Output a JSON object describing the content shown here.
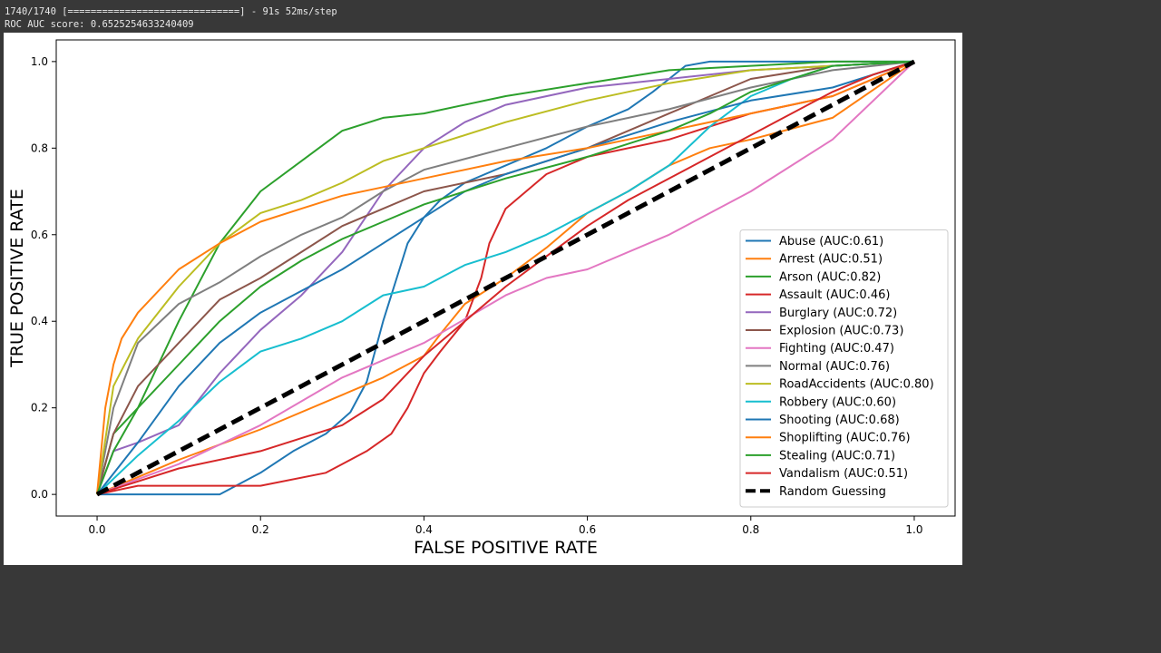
{
  "console": {
    "progress_line": "1740/1740 [==============================] - 91s 52ms/step",
    "score_line": "ROC AUC score: 0.6525254633240409"
  },
  "chart_data": {
    "type": "line",
    "title": "",
    "xlabel": "FALSE POSITIVE RATE",
    "ylabel": "TRUE POSITIVE RATE",
    "xlim": [
      -0.05,
      1.05
    ],
    "ylim": [
      -0.05,
      1.05
    ],
    "xticks": [
      "0.0",
      "0.2",
      "0.4",
      "0.6",
      "0.8",
      "1.0"
    ],
    "yticks": [
      "0.0",
      "0.2",
      "0.4",
      "0.6",
      "0.8",
      "1.0"
    ],
    "grid": false,
    "legend_position": "lower-right",
    "series": [
      {
        "name": "Abuse (AUC:0.61)",
        "color": "#1f77b4",
        "style": "solid",
        "x": [
          0,
          0.15,
          0.2,
          0.24,
          0.28,
          0.31,
          0.33,
          0.34,
          0.35,
          0.36,
          0.37,
          0.38,
          0.4,
          0.42,
          0.45,
          0.5,
          0.55,
          0.6,
          0.65,
          0.68,
          0.7,
          0.72,
          0.75,
          0.85,
          1.0
        ],
        "y": [
          0,
          0.0,
          0.05,
          0.1,
          0.14,
          0.19,
          0.26,
          0.33,
          0.4,
          0.46,
          0.52,
          0.58,
          0.64,
          0.68,
          0.72,
          0.76,
          0.8,
          0.85,
          0.89,
          0.93,
          0.96,
          0.99,
          1.0,
          1.0,
          1.0
        ]
      },
      {
        "name": "Arrest (AUC:0.51)",
        "color": "#ff7f0e",
        "style": "solid",
        "x": [
          0,
          0.1,
          0.2,
          0.3,
          0.35,
          0.4,
          0.42,
          0.45,
          0.5,
          0.55,
          0.6,
          0.65,
          0.7,
          0.75,
          0.8,
          0.9,
          1.0
        ],
        "y": [
          0,
          0.08,
          0.15,
          0.23,
          0.27,
          0.32,
          0.37,
          0.44,
          0.5,
          0.57,
          0.65,
          0.7,
          0.76,
          0.8,
          0.82,
          0.87,
          1.0
        ]
      },
      {
        "name": "Arson (AUC:0.82)",
        "color": "#2ca02c",
        "style": "solid",
        "x": [
          0,
          0.02,
          0.05,
          0.1,
          0.15,
          0.2,
          0.25,
          0.3,
          0.35,
          0.4,
          0.5,
          0.6,
          0.7,
          0.8,
          0.9,
          1.0
        ],
        "y": [
          0,
          0.14,
          0.2,
          0.4,
          0.58,
          0.7,
          0.77,
          0.84,
          0.87,
          0.88,
          0.92,
          0.95,
          0.98,
          0.99,
          1.0,
          1.0
        ]
      },
      {
        "name": "Assault (AUC:0.46)",
        "color": "#d62728",
        "style": "solid",
        "x": [
          0,
          0.05,
          0.2,
          0.28,
          0.33,
          0.36,
          0.38,
          0.4,
          0.42,
          0.45,
          0.47,
          0.48,
          0.5,
          0.55,
          0.6,
          0.7,
          0.8,
          0.85,
          0.9,
          1.0
        ],
        "y": [
          0,
          0.02,
          0.02,
          0.05,
          0.1,
          0.14,
          0.2,
          0.28,
          0.33,
          0.4,
          0.5,
          0.58,
          0.66,
          0.74,
          0.78,
          0.82,
          0.88,
          0.9,
          0.92,
          1.0
        ]
      },
      {
        "name": "Burglary (AUC:0.72)",
        "color": "#9467bd",
        "style": "solid",
        "x": [
          0,
          0.02,
          0.05,
          0.1,
          0.15,
          0.2,
          0.25,
          0.3,
          0.35,
          0.4,
          0.45,
          0.5,
          0.6,
          0.7,
          0.8,
          1.0
        ],
        "y": [
          0,
          0.1,
          0.12,
          0.16,
          0.28,
          0.38,
          0.46,
          0.56,
          0.7,
          0.8,
          0.86,
          0.9,
          0.94,
          0.96,
          0.98,
          1.0
        ]
      },
      {
        "name": "Explosion (AUC:0.73)",
        "color": "#8c564b",
        "style": "solid",
        "x": [
          0,
          0.02,
          0.05,
          0.1,
          0.15,
          0.2,
          0.25,
          0.3,
          0.35,
          0.4,
          0.5,
          0.6,
          0.7,
          0.8,
          0.9,
          1.0
        ],
        "y": [
          0,
          0.14,
          0.25,
          0.35,
          0.45,
          0.5,
          0.56,
          0.62,
          0.66,
          0.7,
          0.74,
          0.8,
          0.88,
          0.96,
          0.99,
          1.0
        ]
      },
      {
        "name": "Fighting (AUC:0.47)",
        "color": "#e377c2",
        "style": "solid",
        "x": [
          0,
          0.1,
          0.2,
          0.3,
          0.4,
          0.5,
          0.55,
          0.6,
          0.7,
          0.8,
          0.9,
          1.0
        ],
        "y": [
          0,
          0.07,
          0.16,
          0.27,
          0.35,
          0.46,
          0.5,
          0.52,
          0.6,
          0.7,
          0.82,
          1.0
        ]
      },
      {
        "name": "Normal (AUC:0.76)",
        "color": "#7f7f7f",
        "style": "solid",
        "x": [
          0,
          0.02,
          0.05,
          0.1,
          0.15,
          0.2,
          0.25,
          0.3,
          0.35,
          0.4,
          0.5,
          0.6,
          0.7,
          0.8,
          0.9,
          1.0
        ],
        "y": [
          0,
          0.2,
          0.35,
          0.44,
          0.49,
          0.55,
          0.6,
          0.64,
          0.7,
          0.75,
          0.8,
          0.85,
          0.89,
          0.94,
          0.98,
          1.0
        ]
      },
      {
        "name": "RoadAccidents (AUC:0.80)",
        "color": "#bcbd22",
        "style": "solid",
        "x": [
          0,
          0.02,
          0.05,
          0.1,
          0.15,
          0.2,
          0.25,
          0.3,
          0.35,
          0.4,
          0.5,
          0.6,
          0.7,
          0.8,
          1.0
        ],
        "y": [
          0,
          0.25,
          0.36,
          0.48,
          0.58,
          0.65,
          0.68,
          0.72,
          0.77,
          0.8,
          0.86,
          0.91,
          0.95,
          0.98,
          1.0
        ]
      },
      {
        "name": "Robbery (AUC:0.60)",
        "color": "#17becf",
        "style": "solid",
        "x": [
          0,
          0.05,
          0.1,
          0.15,
          0.2,
          0.25,
          0.3,
          0.35,
          0.4,
          0.45,
          0.5,
          0.55,
          0.6,
          0.65,
          0.7,
          0.75,
          0.8,
          0.85,
          0.9,
          1.0
        ],
        "y": [
          0,
          0.09,
          0.17,
          0.26,
          0.33,
          0.36,
          0.4,
          0.46,
          0.48,
          0.53,
          0.56,
          0.6,
          0.65,
          0.7,
          0.76,
          0.85,
          0.92,
          0.96,
          0.99,
          1.0
        ]
      },
      {
        "name": "Shooting (AUC:0.68)",
        "color": "#1f77b4",
        "style": "solid",
        "x": [
          0,
          0.05,
          0.1,
          0.15,
          0.2,
          0.25,
          0.3,
          0.35,
          0.4,
          0.45,
          0.5,
          0.6,
          0.7,
          0.8,
          0.9,
          1.0
        ],
        "y": [
          0,
          0.12,
          0.25,
          0.35,
          0.42,
          0.47,
          0.52,
          0.58,
          0.64,
          0.7,
          0.74,
          0.8,
          0.86,
          0.91,
          0.94,
          1.0
        ]
      },
      {
        "name": "Shoplifting (AUC:0.76)",
        "color": "#ff7f0e",
        "style": "solid",
        "x": [
          0,
          0.01,
          0.02,
          0.03,
          0.05,
          0.1,
          0.15,
          0.2,
          0.25,
          0.3,
          0.35,
          0.4,
          0.5,
          0.6,
          0.7,
          0.8,
          0.9,
          1.0
        ],
        "y": [
          0,
          0.2,
          0.3,
          0.36,
          0.42,
          0.52,
          0.58,
          0.63,
          0.66,
          0.69,
          0.71,
          0.73,
          0.77,
          0.8,
          0.84,
          0.88,
          0.92,
          1.0
        ]
      },
      {
        "name": "Stealing (AUC:0.71)",
        "color": "#2ca02c",
        "style": "solid",
        "x": [
          0,
          0.02,
          0.05,
          0.1,
          0.15,
          0.2,
          0.25,
          0.3,
          0.35,
          0.4,
          0.5,
          0.6,
          0.7,
          0.75,
          0.8,
          0.9,
          1.0
        ],
        "y": [
          0,
          0.1,
          0.2,
          0.3,
          0.4,
          0.48,
          0.54,
          0.59,
          0.63,
          0.67,
          0.73,
          0.78,
          0.84,
          0.88,
          0.93,
          0.99,
          1.0
        ]
      },
      {
        "name": "Vandalism (AUC:0.51)",
        "color": "#d62728",
        "style": "solid",
        "x": [
          0,
          0.1,
          0.2,
          0.3,
          0.35,
          0.4,
          0.45,
          0.5,
          0.55,
          0.6,
          0.65,
          0.7,
          0.75,
          0.8,
          0.85,
          0.9,
          0.95,
          1.0
        ],
        "y": [
          0,
          0.06,
          0.1,
          0.16,
          0.22,
          0.32,
          0.4,
          0.48,
          0.55,
          0.62,
          0.68,
          0.73,
          0.78,
          0.83,
          0.88,
          0.93,
          0.97,
          1.0
        ]
      },
      {
        "name": "Random Guessing",
        "color": "#000000",
        "style": "dashed",
        "x": [
          0,
          1
        ],
        "y": [
          0,
          1
        ]
      }
    ]
  }
}
